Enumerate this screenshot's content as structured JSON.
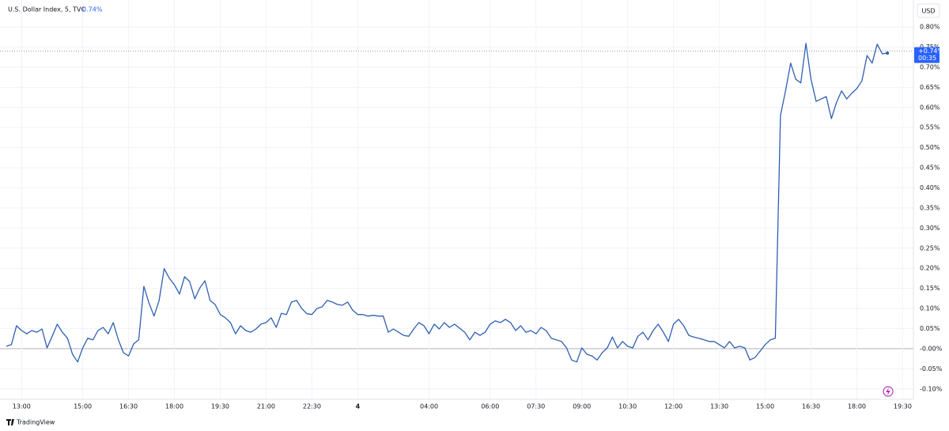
{
  "chart_data": {
    "type": "line",
    "title": "U.S. Dollar Index, 5, TVC",
    "header_change": "0.74%",
    "currency": "USD",
    "countdown": "00:35",
    "brand": "TradingView",
    "last_price": {
      "value": 0.74,
      "label": "+0.74%"
    },
    "color": "#2f5fb3",
    "grid": true,
    "ylim": [
      -0.126,
      0.867
    ],
    "yticks": [
      {
        "value": -0.1,
        "label": "-0.10%"
      },
      {
        "value": -0.05,
        "label": "-0.05%"
      },
      {
        "value": 0,
        "label": "-0.00%"
      },
      {
        "value": 0.05,
        "label": "0.05%"
      },
      {
        "value": 0.1,
        "label": "0.10%"
      },
      {
        "value": 0.15,
        "label": "0.15%"
      },
      {
        "value": 0.2,
        "label": "0.20%"
      },
      {
        "value": 0.25,
        "label": "0.25%"
      },
      {
        "value": 0.3,
        "label": "0.30%"
      },
      {
        "value": 0.35,
        "label": "0.35%"
      },
      {
        "value": 0.4,
        "label": "0.40%"
      },
      {
        "value": 0.45,
        "label": "0.45%"
      },
      {
        "value": 0.5,
        "label": "0.50%"
      },
      {
        "value": 0.55,
        "label": "0.55%"
      },
      {
        "value": 0.6,
        "label": "0.60%"
      },
      {
        "value": 0.65,
        "label": "0.65%"
      },
      {
        "value": 0.7,
        "label": "0.70%"
      },
      {
        "value": 0.75,
        "label": "0.75%"
      },
      {
        "value": 0.8,
        "label": "0.80%"
      }
    ],
    "categories": [
      null,
      null,
      null,
      "13:00",
      null,
      null,
      null,
      null,
      null,
      null,
      null,
      null,
      null,
      null,
      null,
      "15:00",
      null,
      null,
      null,
      null,
      null,
      null,
      null,
      null,
      "16:30",
      null,
      null,
      null,
      null,
      null,
      null,
      null,
      null,
      "18:00",
      null,
      null,
      null,
      null,
      null,
      null,
      null,
      null,
      "19:30",
      null,
      null,
      null,
      null,
      null,
      null,
      null,
      null,
      "21:00",
      null,
      null,
      null,
      null,
      null,
      null,
      null,
      null,
      "22:30",
      null,
      null,
      null,
      null,
      null,
      null,
      null,
      null,
      "4",
      null,
      null,
      null,
      null,
      null,
      null,
      null,
      null,
      null,
      null,
      null,
      null,
      null,
      "04:00",
      null,
      null,
      null,
      null,
      null,
      null,
      null,
      null,
      null,
      null,
      null,
      "06:00",
      null,
      null,
      null,
      null,
      null,
      null,
      null,
      null,
      "07:30",
      null,
      null,
      null,
      null,
      null,
      null,
      null,
      null,
      "09:00",
      null,
      null,
      null,
      null,
      null,
      null,
      null,
      null,
      "10:30",
      null,
      null,
      null,
      null,
      null,
      null,
      null,
      null,
      "12:00",
      null,
      null,
      null,
      null,
      null,
      null,
      null,
      null,
      "13:30",
      null,
      null,
      null,
      null,
      null,
      null,
      null,
      null,
      "15:00",
      null,
      null,
      null,
      null,
      null,
      null,
      null,
      null,
      "16:30",
      null,
      null,
      null,
      null,
      null,
      null,
      null,
      null,
      "18:00",
      null,
      null,
      null,
      null,
      null,
      null,
      null,
      null,
      "19:30"
    ],
    "values": [
      0.006,
      0.01,
      0.057,
      0.045,
      0.037,
      0.045,
      0.041,
      0.049,
      0.002,
      0.031,
      0.061,
      0.041,
      0.026,
      -0.014,
      -0.033,
      0.002,
      0.026,
      0.022,
      0.045,
      0.053,
      0.037,
      0.065,
      0.022,
      -0.01,
      -0.018,
      0.012,
      0.022,
      0.155,
      0.114,
      0.081,
      0.12,
      0.199,
      0.175,
      0.159,
      0.136,
      0.179,
      0.167,
      0.124,
      0.151,
      0.169,
      0.12,
      0.11,
      0.085,
      0.077,
      0.065,
      0.037,
      0.057,
      0.045,
      0.041,
      0.049,
      0.061,
      0.065,
      0.077,
      0.053,
      0.088,
      0.085,
      0.116,
      0.12,
      0.1,
      0.087,
      0.085,
      0.1,
      0.104,
      0.12,
      0.116,
      0.11,
      0.108,
      0.116,
      0.096,
      0.085,
      0.085,
      0.081,
      0.083,
      0.081,
      0.081,
      0.041,
      0.049,
      0.041,
      0.033,
      0.031,
      0.049,
      0.065,
      0.057,
      0.037,
      0.061,
      0.049,
      0.065,
      0.053,
      0.061,
      0.051,
      0.041,
      0.022,
      0.041,
      0.033,
      0.041,
      0.061,
      0.069,
      0.065,
      0.073,
      0.065,
      0.045,
      0.057,
      0.041,
      0.045,
      0.037,
      0.053,
      0.045,
      0.026,
      0.022,
      0.018,
      0.002,
      -0.028,
      -0.033,
      0.002,
      -0.014,
      -0.018,
      -0.028,
      -0.01,
      0.002,
      0.029,
      0.002,
      0.018,
      0.006,
      0.002,
      0.031,
      0.041,
      0.022,
      0.045,
      0.061,
      0.041,
      0.018,
      0.061,
      0.073,
      0.057,
      0.033,
      0.029,
      0.026,
      0.022,
      0.018,
      0.018,
      0.01,
      0.002,
      0.018,
      0.002,
      0.006,
      0.002,
      -0.028,
      -0.022,
      -0.006,
      0.01,
      0.022,
      0.026,
      0.58,
      0.641,
      0.71,
      0.67,
      0.661,
      0.759,
      0.67,
      0.615,
      0.621,
      0.627,
      0.572,
      0.612,
      0.641,
      0.621,
      0.635,
      0.647,
      0.666,
      0.729,
      0.71,
      0.757,
      0.733,
      0.735,
      null,
      null,
      null
    ]
  }
}
